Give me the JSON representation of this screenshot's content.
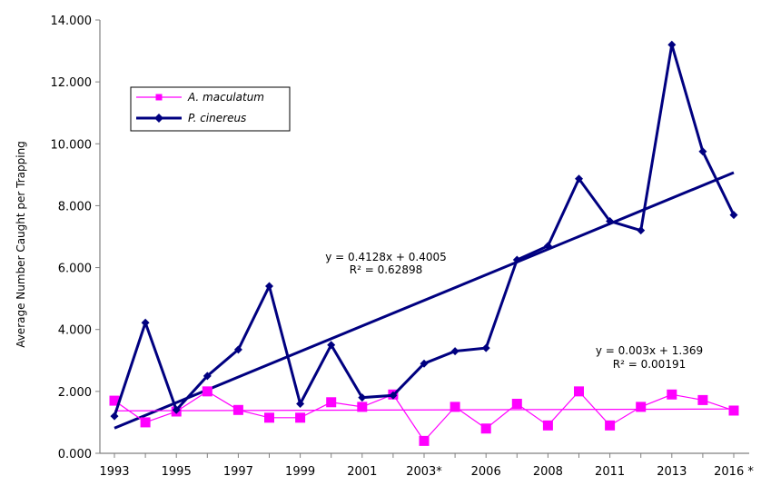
{
  "chart_data": {
    "type": "line",
    "title": "",
    "xlabel": "",
    "ylabel": "Average Number Caught per Trapping",
    "ylim": [
      0,
      14
    ],
    "y_ticks": [
      "0.000",
      "2.000",
      "4.000",
      "6.000",
      "8.000",
      "10.000",
      "12.000",
      "14.000"
    ],
    "x_ticks": [
      "1993",
      "1995",
      "1997",
      "1999",
      "2001",
      "2003*",
      "2006",
      "2008",
      "2011",
      "2013",
      "2016 *"
    ],
    "grid": false,
    "legend": "upper-left",
    "series": [
      {
        "name": "A. maculatum",
        "color": "#ff00ff",
        "marker": "square",
        "values": [
          1.7,
          1.0,
          1.35,
          2.0,
          1.4,
          1.15,
          1.15,
          1.65,
          1.5,
          1.9,
          0.4,
          1.5,
          0.8,
          1.6,
          0.9,
          2.0,
          0.9,
          1.5,
          1.9,
          1.72,
          1.38
        ]
      },
      {
        "name": "P. cinereus",
        "color": "#000080",
        "marker": "diamond",
        "values": [
          1.2,
          4.22,
          1.4,
          2.5,
          3.35,
          5.4,
          1.6,
          3.5,
          1.8,
          1.87,
          2.9,
          3.3,
          3.4,
          6.25,
          6.7,
          8.87,
          7.5,
          7.2,
          13.2,
          9.75,
          7.7
        ]
      }
    ],
    "trendlines": [
      {
        "series": "P. cinereus",
        "equation": "y = 0.4128x + 0.4005",
        "r2": "R² = 0.62898",
        "slope": 0.4128,
        "intercept": 0.4005
      },
      {
        "series": "A. maculatum",
        "equation": "y = 0.003x + 1.369",
        "r2": "R² = 0.00191",
        "slope": 0.003,
        "intercept": 1.369
      }
    ]
  }
}
